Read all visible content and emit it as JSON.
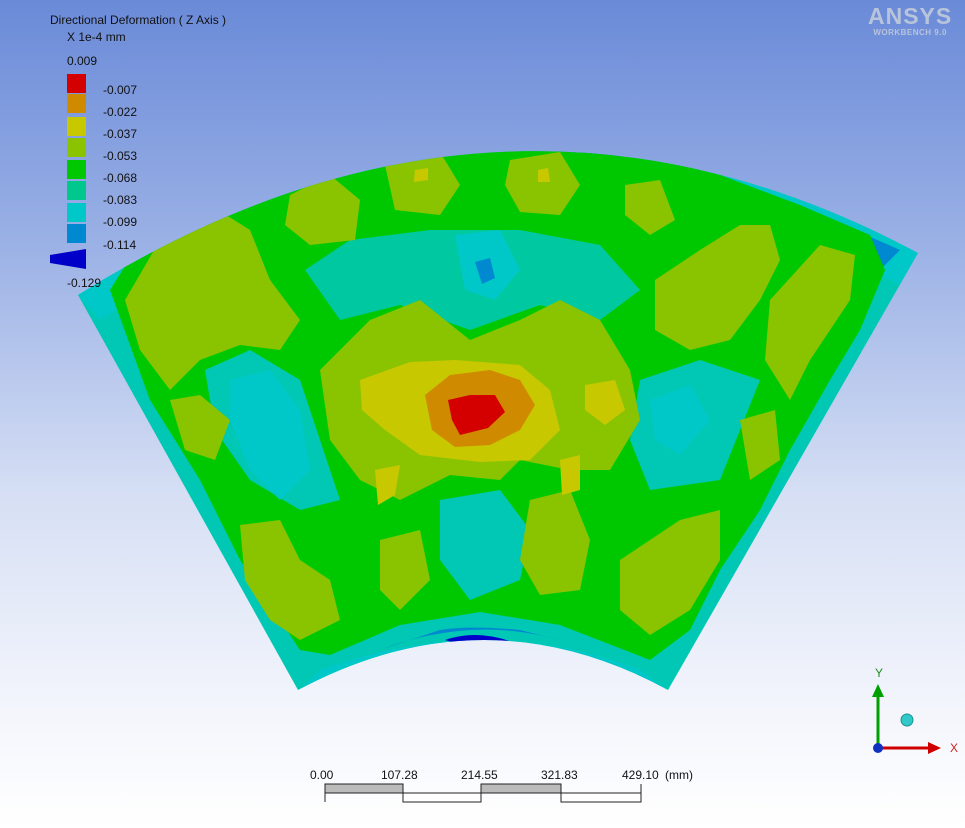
{
  "app": {
    "logo": "ANSYS",
    "logo_sub": "WORKBENCH 9.0"
  },
  "legend": {
    "title": "Directional Deformation ( Z Axis )",
    "units": "X 1e-4 mm",
    "max_label": "0.009",
    "bands": [
      {
        "label": "-0.007",
        "color": "#ff0000"
      },
      {
        "label": "-0.022",
        "color": "#ffaa00"
      },
      {
        "label": "-0.037",
        "color": "#ffff00"
      },
      {
        "label": "-0.053",
        "color": "#aaff00"
      },
      {
        "label": "-0.068",
        "color": "#00ff00"
      },
      {
        "label": "-0.083",
        "color": "#00ffaa"
      },
      {
        "label": "-0.099",
        "color": "#00ffff"
      },
      {
        "label": "-0.114",
        "color": "#00aaff"
      },
      {
        "label": "-0.129",
        "color": "#0000ff"
      }
    ]
  },
  "chart_data": {
    "type": "heatmap",
    "title": "Directional Deformation ( Z Axis )",
    "units": "X 1e-4 mm",
    "color_scale": {
      "levels": [
        0.009,
        -0.007,
        -0.022,
        -0.037,
        -0.053,
        -0.068,
        -0.083,
        -0.099,
        -0.114,
        -0.129
      ],
      "colors": [
        "#ff0000",
        "#ffaa00",
        "#ffff00",
        "#aaff00",
        "#00ff00",
        "#00ffaa",
        "#00ffff",
        "#00aaff",
        "#0000ff"
      ]
    },
    "max_value": 0.009,
    "min_value": -0.129,
    "rendered_palette": {
      "red": "#d40000",
      "orange": "#d08a00",
      "yellow": "#c8c800",
      "yellow_green": "#8ac400",
      "green": "#00c800",
      "teal": "#00c88c",
      "cyan": "#00c8c8",
      "light_blue": "#0088d0",
      "blue": "#0000c8"
    }
  },
  "scale_bar": {
    "ticks": [
      "0.00",
      "107.28",
      "214.55",
      "321.83",
      "429.10"
    ],
    "unit": "(mm)"
  },
  "triad": {
    "x_label": "X",
    "y_label": "Y"
  }
}
